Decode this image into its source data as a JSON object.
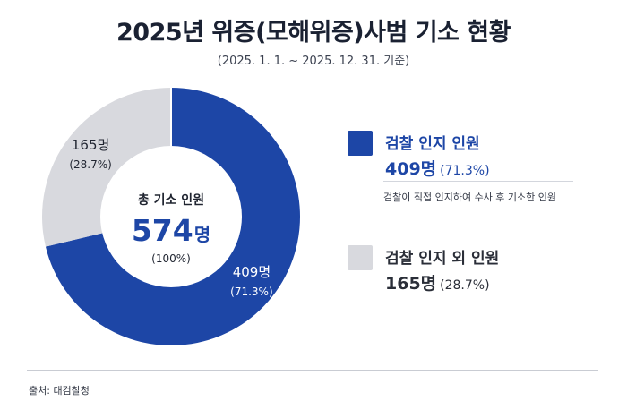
{
  "header": {
    "title": "2025년 위증(모해위증)사범 기소 현황",
    "subtitle": "(2025. 1. 1. ~ 2025. 12. 31. 기준)"
  },
  "chart_data": {
    "type": "pie",
    "variant": "donut",
    "center": {
      "label": "총 기소 인원",
      "total": "574",
      "unit": "명",
      "percent": "(100%)"
    },
    "slices": [
      {
        "name": "검찰 인지 인원",
        "value": 409,
        "value_label": "409명",
        "percent_label": "(71.3%)",
        "color": "#1d46a6",
        "label_color": "#ffffff"
      },
      {
        "name": "검찰 인지 외 인원",
        "value": 165,
        "value_label": "165명",
        "percent_label": "(28.7%)",
        "color": "#d8d9de",
        "label_color": "#1f2430"
      }
    ],
    "start_angle_deg": 0,
    "direction": "clockwise",
    "legend_position": "right"
  },
  "legend": {
    "description": "검찰이 직접 인지하여 수사 후 기소한 인원"
  },
  "footer": {
    "source": "출처: 대검찰청"
  }
}
